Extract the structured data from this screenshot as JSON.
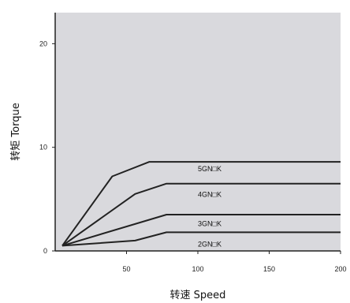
{
  "chart_data": {
    "type": "line",
    "title": "",
    "xlabel": "转速  Speed",
    "ylabel": "转矩  Torque",
    "xlim": [
      0,
      200
    ],
    "ylim": [
      0,
      23
    ],
    "x_ticks": [
      50,
      100,
      150,
      200
    ],
    "y_ticks": [
      0,
      10,
      20
    ],
    "grid": false,
    "colors": {
      "plot_bg": "#d9d9dd",
      "line": "#222222"
    },
    "series": [
      {
        "name": "5GN□K",
        "points": [
          [
            5,
            0.5
          ],
          [
            40,
            7.2
          ],
          [
            66,
            8.6
          ],
          [
            200,
            8.6
          ]
        ]
      },
      {
        "name": "4GN□K",
        "points": [
          [
            5,
            0.5
          ],
          [
            56,
            5.5
          ],
          [
            78,
            6.5
          ],
          [
            200,
            6.5
          ]
        ]
      },
      {
        "name": "3GN□K",
        "points": [
          [
            5,
            0.5
          ],
          [
            78,
            3.5
          ],
          [
            200,
            3.5
          ]
        ]
      },
      {
        "name": "2GN□K",
        "points": [
          [
            5,
            0.5
          ],
          [
            56,
            1.0
          ],
          [
            78,
            1.8
          ],
          [
            200,
            1.8
          ]
        ]
      }
    ],
    "series_label_positions": [
      {
        "name": "5GN□K",
        "x": 100,
        "y": 7.7
      },
      {
        "name": "4GN□K",
        "x": 100,
        "y": 5.2
      },
      {
        "name": "3GN□K",
        "x": 100,
        "y": 2.4
      },
      {
        "name": "2GN□K",
        "x": 100,
        "y": 0.4
      }
    ]
  }
}
